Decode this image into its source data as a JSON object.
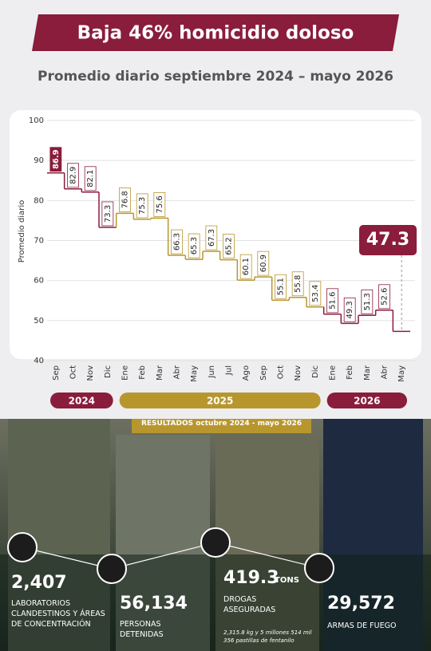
{
  "chart_data": {
    "type": "step",
    "title": "Baja 46% homicidio doloso",
    "subtitle": "Promedio diario septiembre 2024 – mayo 2026",
    "ylabel": "Promedio diario",
    "categories": [
      "Sep",
      "Oct",
      "Nov",
      "Dic",
      "Ene",
      "Feb",
      "Mar",
      "Abr",
      "May",
      "Jun",
      "Jul",
      "Ago",
      "Sep",
      "Oct",
      "Nov",
      "Dic",
      "Ene",
      "Feb",
      "Mar",
      "Abr",
      "May"
    ],
    "series": [
      {
        "name": "2024",
        "color": "#8a1c3c",
        "values": [
          86.9,
          82.9,
          82.1,
          73.3,
          null,
          null,
          null,
          null,
          null,
          null,
          null,
          null,
          null,
          null,
          null,
          null,
          null,
          null,
          null,
          null,
          null
        ]
      },
      {
        "name": "2025",
        "color": "#b8962e",
        "values": [
          null,
          null,
          null,
          null,
          76.8,
          75.3,
          75.6,
          66.3,
          65.3,
          67.3,
          65.2,
          60.1,
          60.9,
          55.1,
          55.8,
          53.4,
          null,
          null,
          null,
          null,
          null
        ]
      },
      {
        "name": "2026",
        "color": "#8a1c3c",
        "values": [
          null,
          null,
          null,
          null,
          null,
          null,
          null,
          null,
          null,
          null,
          null,
          null,
          null,
          null,
          null,
          null,
          51.6,
          49.3,
          51.3,
          52.6,
          47.3
        ]
      }
    ],
    "ylim": [
      40,
      100
    ],
    "yticks": [
      40,
      50,
      60,
      70,
      80,
      90,
      100
    ],
    "grid": true
  },
  "results": {
    "title": "RESULTADOS octubre 2024 - mayo 2026",
    "items": [
      {
        "value": "2,407",
        "label": "LABORATORIOS CLANDESTINOS Y ÁREAS DE CONCENTRACIÓN"
      },
      {
        "value": "56,134",
        "label": "PERSONAS DETENIDAS"
      },
      {
        "value": "419.3",
        "unit": "TONS",
        "label": "DROGAS ASEGURADAS",
        "note": "2,315.8 kg y 5 millones 514 mil 356 pastillas de fentanilo"
      },
      {
        "value": "29,572",
        "label": "ARMAS DE FUEGO"
      }
    ]
  }
}
